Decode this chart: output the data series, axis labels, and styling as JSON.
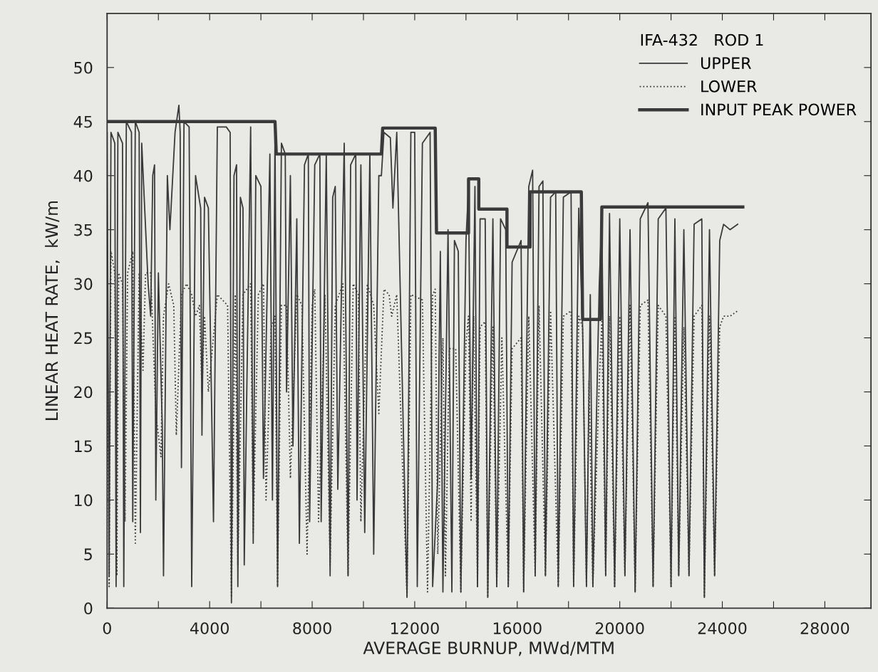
{
  "chart_data": {
    "type": "line",
    "xlabel": "AVERAGE BURNUP, MWd/MTM",
    "ylabel": "LINEAR HEAT RATE,  kW/m",
    "legend_title": "IFA-432   ROD 1",
    "xlim": [
      0,
      29800
    ],
    "ylim": [
      0,
      55
    ],
    "xticks": [
      0,
      {
        "value": 2000,
        "label": null
      },
      4000,
      {
        "value": 6000,
        "label": null
      },
      8000,
      {
        "value": 10000,
        "label": null
      },
      12000,
      {
        "value": 14000,
        "label": null
      },
      16000,
      {
        "value": 18000,
        "label": null
      },
      20000,
      {
        "value": 22000,
        "label": null
      },
      24000,
      {
        "value": 26000,
        "label": null
      },
      28000
    ],
    "yticks": [
      0,
      5,
      10,
      15,
      20,
      25,
      30,
      35,
      40,
      45,
      50
    ],
    "grid": false,
    "legend": "top right",
    "marker": "none",
    "series": [
      {
        "name": "UPPER",
        "color": "#3a3a3a",
        "line_style": "solid",
        "x": [
          0,
          80,
          150,
          300,
          350,
          420,
          600,
          650,
          750,
          950,
          1000,
          1100,
          1250,
          1300,
          1350,
          1600,
          1700,
          1780,
          1850,
          1900,
          2000,
          2150,
          2200,
          2350,
          2450,
          2650,
          2800,
          2850,
          2900,
          3000,
          3200,
          3300,
          3450,
          3650,
          3700,
          3800,
          3950,
          4150,
          4300,
          4650,
          4800,
          4850,
          4950,
          5050,
          5100,
          5200,
          5300,
          5350,
          5600,
          5700,
          5800,
          6000,
          6100,
          6350,
          6450,
          6550,
          6650,
          6800,
          6950,
          7000,
          7150,
          7250,
          7400,
          7500,
          7700,
          7850,
          7900,
          8100,
          8300,
          8350,
          8550,
          8700,
          8800,
          8900,
          9000,
          9250,
          9400,
          9500,
          9700,
          9750,
          9900,
          10050,
          10250,
          10400,
          10600,
          10700,
          10800,
          11050,
          11150,
          11300,
          11700,
          11850,
          12000,
          12100,
          12300,
          12600,
          12700,
          12900,
          13000,
          13100,
          13300,
          13450,
          13550,
          13700,
          13800,
          14000,
          14100,
          14200,
          14350,
          14450,
          14550,
          14750,
          14850,
          15050,
          15200,
          15350,
          15550,
          15650,
          15800,
          16150,
          16250,
          16450,
          16600,
          16700,
          16850,
          17000,
          17100,
          17300,
          17500,
          17600,
          17800,
          18100,
          18200,
          18400,
          18550,
          18700,
          18850,
          18950,
          19200,
          19300,
          19450,
          19600,
          19800,
          20000,
          20200,
          20400,
          20600,
          20800,
          21100,
          21300,
          21500,
          21800,
          22000,
          22150,
          22300,
          22500,
          22700,
          22900,
          23200,
          23300,
          23500,
          23700,
          23900,
          24050,
          24300,
          24600
        ],
        "values": [
          44,
          3,
          44,
          43,
          2,
          44,
          43,
          2,
          45,
          44,
          8,
          45,
          44,
          7,
          43,
          30,
          27,
          40,
          41,
          10,
          31,
          17,
          3,
          40,
          35,
          44,
          46.5,
          44,
          13,
          45,
          44.5,
          2,
          40,
          37,
          16,
          38,
          37,
          8,
          44.5,
          44.5,
          44,
          0.5,
          40,
          41,
          2,
          38,
          37,
          4,
          44.5,
          6,
          40,
          39,
          12,
          42,
          10,
          44,
          2,
          43,
          42,
          20,
          40,
          15,
          36,
          6,
          41,
          42,
          8,
          41,
          42,
          8,
          42,
          3,
          38,
          39,
          11,
          43,
          3,
          41,
          42,
          10,
          41,
          7,
          42,
          5,
          40,
          40,
          44,
          43.5,
          37,
          44,
          1,
          44,
          44,
          2,
          43,
          44,
          2,
          12,
          33,
          1.5,
          35,
          1.5,
          34,
          33,
          1.5,
          34,
          39,
          12,
          39,
          2,
          36,
          36,
          1,
          36,
          2,
          36,
          35,
          2,
          32,
          34,
          1.5,
          39,
          40.5,
          3,
          39,
          39.5,
          3,
          38,
          38.5,
          2,
          38,
          38.5,
          2,
          37,
          26,
          2,
          29,
          2,
          30,
          36,
          3,
          36.5,
          2,
          36,
          3,
          35,
          1.5,
          36,
          37.5,
          2,
          36,
          37,
          2,
          36,
          3,
          35,
          3,
          35.5,
          36,
          1,
          35,
          3,
          34,
          35.5,
          35,
          35.5
        ]
      },
      {
        "name": "LOWER",
        "color": "#3a3a3a",
        "line_style": "dotted",
        "x": [
          0,
          80,
          150,
          300,
          380,
          450,
          600,
          700,
          800,
          1000,
          1100,
          1250,
          1400,
          1500,
          1700,
          1900,
          2100,
          2200,
          2400,
          2600,
          2700,
          2900,
          3100,
          3300,
          3450,
          3600,
          3700,
          3800,
          3950,
          4300,
          4700,
          4850,
          5000,
          5100,
          5300,
          5600,
          5700,
          5900,
          6100,
          6200,
          6400,
          6550,
          6650,
          6800,
          7000,
          7150,
          7400,
          7600,
          7800,
          8000,
          8100,
          8250,
          8500,
          8700,
          8900,
          9200,
          9400,
          9600,
          9800,
          9900,
          10150,
          10400,
          10600,
          10800,
          11000,
          11100,
          11300,
          11700,
          11850,
          12300,
          12500,
          12700,
          12800,
          12900,
          13100,
          13200,
          13350,
          13600,
          13800,
          14000,
          14100,
          14200,
          14300,
          14450,
          14550,
          14750,
          14850,
          15050,
          15200,
          15400,
          15650,
          15800,
          16150,
          16250,
          16450,
          16700,
          16850,
          17100,
          17300,
          17600,
          17800,
          18100,
          18200,
          18400,
          18550,
          18700,
          18800,
          18950,
          19200,
          19300,
          19450,
          19600,
          19800,
          20000,
          20200,
          20400,
          20600,
          20800,
          21100,
          21300,
          21500,
          21800,
          22000,
          22150,
          22300,
          22500,
          22700,
          22900,
          23200,
          23300,
          23500,
          23700,
          23900,
          24050,
          24300,
          24600
        ],
        "values": [
          31,
          2,
          33,
          31,
          3,
          31,
          30,
          8,
          31,
          33,
          6,
          31,
          22,
          31,
          31,
          18,
          14,
          27,
          30,
          28,
          16,
          29,
          30,
          29,
          27,
          28,
          20,
          27,
          20,
          29,
          28,
          1,
          29,
          4,
          29,
          30,
          7,
          29,
          30,
          10,
          26,
          27,
          2,
          28,
          28,
          12,
          29,
          28,
          5,
          28,
          29.5,
          8,
          29,
          4,
          28,
          30,
          3,
          30,
          29,
          8,
          30,
          28,
          18,
          29.5,
          29,
          27,
          29,
          1,
          29,
          28.5,
          1.5,
          29,
          29.5,
          5,
          25,
          3,
          24,
          24,
          1.5,
          24.5,
          27,
          8,
          27,
          2,
          26,
          26.5,
          1,
          26,
          2,
          25,
          2,
          24,
          25,
          1.5,
          27,
          3,
          28,
          3,
          27.5,
          2,
          27,
          27.5,
          2,
          27,
          26,
          2,
          21,
          2,
          21,
          26.5,
          3,
          27,
          2,
          27,
          3,
          28,
          1.5,
          28,
          28.5,
          2,
          28,
          27,
          2,
          27,
          3,
          26,
          3,
          27,
          28,
          1,
          27,
          3,
          26,
          27,
          27,
          27.5
        ]
      },
      {
        "name": "INPUT PEAK POWER",
        "color": "#3a3a3a",
        "line_style": "solid",
        "x": [
          0,
          6550,
          6600,
          10700,
          10750,
          12800,
          12850,
          14100,
          14100,
          14500,
          14500,
          15600,
          15600,
          16500,
          16500,
          18500,
          18550,
          19250,
          19300,
          24800
        ],
        "values": [
          45,
          45,
          42,
          42,
          44.4,
          44.4,
          34.7,
          34.7,
          39.7,
          39.7,
          36.9,
          36.9,
          33.4,
          33.4,
          38.5,
          38.5,
          26.7,
          26.7,
          37.1,
          37.1
        ]
      }
    ]
  }
}
